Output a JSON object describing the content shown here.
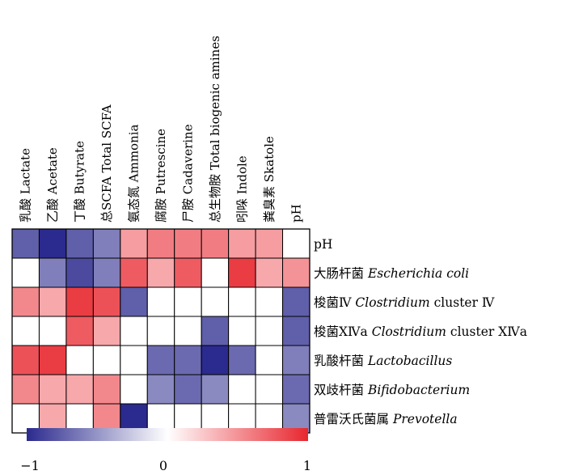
{
  "chart_data": {
    "type": "heatmap",
    "columns": [
      "乳酸 Lactate",
      "乙酸  Acetate",
      "丁酸  Butyrate",
      "总SCFA Total SCFA",
      "氨态氮  Ammonia",
      "腐胺 Putrescine",
      "尸胺  Cadaverine",
      "总生物胺  Total biogenic amines",
      "吲哚  Indole",
      "粪臭素  Skatole",
      "pH"
    ],
    "rows": [
      {
        "label": "pH",
        "latin": ""
      },
      {
        "label": "大肠杆菌 ",
        "latin": "Escherichia coli"
      },
      {
        "label": "梭菌Ⅳ ",
        "latin": "Clostridium",
        "suffix": " cluster Ⅳ"
      },
      {
        "label": "梭菌ⅩⅣa ",
        "latin": "Clostridium",
        "suffix": " cluster ⅩⅣa"
      },
      {
        "label": "乳酸杆菌 ",
        "latin": "Lactobacillus"
      },
      {
        "label": "双歧杆菌 ",
        "latin": "Bifidobacterium"
      },
      {
        "label": "普雷沃氏菌属 ",
        "latin": "Prevotella"
      }
    ],
    "values": [
      [
        -0.75,
        -1.0,
        -0.75,
        -0.6,
        0.45,
        0.6,
        0.6,
        0.6,
        0.45,
        0.45,
        0
      ],
      [
        0,
        -0.6,
        -0.85,
        -0.6,
        0.75,
        0.4,
        0.75,
        0,
        0.9,
        0.4,
        0.5
      ],
      [
        0.55,
        0.4,
        0.9,
        0.8,
        -0.75,
        0,
        0,
        0,
        0,
        0,
        -0.75
      ],
      [
        0,
        0,
        0.75,
        0.4,
        0,
        0,
        0,
        -0.75,
        0,
        0,
        -0.75
      ],
      [
        0.8,
        0.9,
        0,
        0,
        0,
        -0.7,
        -0.7,
        -1.0,
        -0.7,
        0,
        -0.6
      ],
      [
        0.55,
        0.4,
        0.4,
        0.55,
        0,
        -0.55,
        -0.7,
        -0.55,
        0,
        0,
        -0.7
      ],
      [
        0,
        0.4,
        0,
        0.55,
        -1.0,
        0,
        0,
        0,
        0,
        0,
        -0.55
      ]
    ],
    "colorscale": {
      "min": -1,
      "mid": 0,
      "max": 1,
      "colors": [
        "#2b2a8e",
        "#ffffff",
        "#e8262e"
      ],
      "tick_labels": [
        "−1",
        "0",
        "1"
      ]
    }
  }
}
